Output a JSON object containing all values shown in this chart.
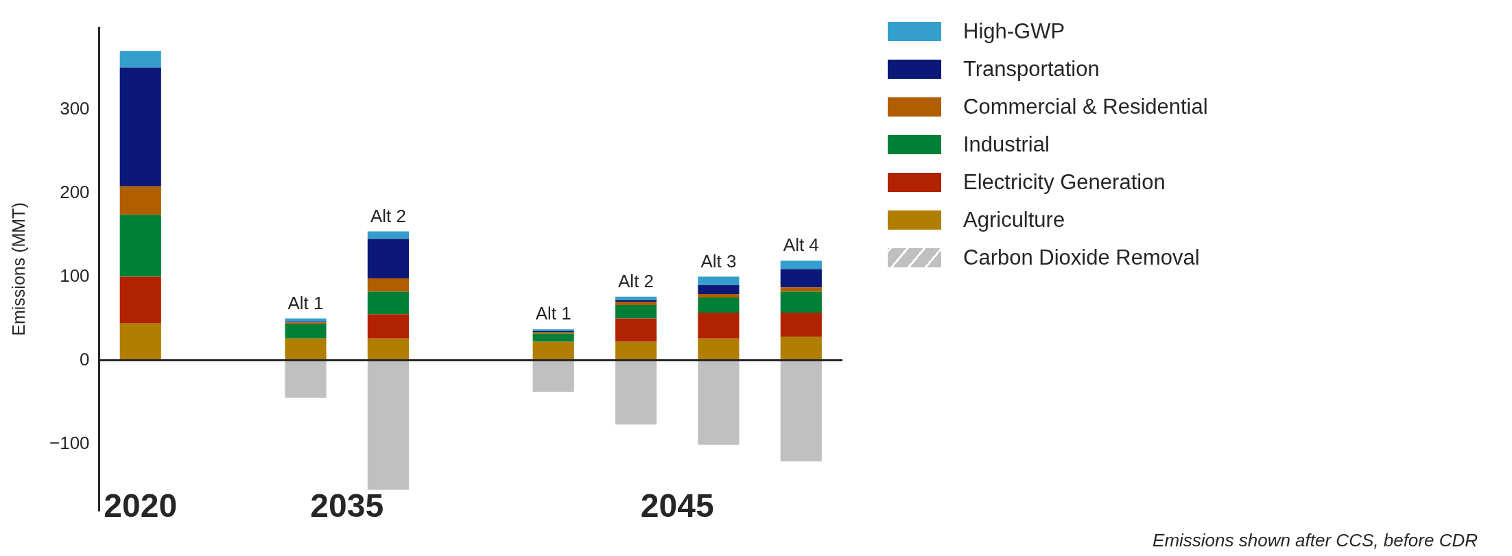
{
  "chart_data": {
    "type": "bar",
    "stacked": true,
    "ylabel": "Emissions (MMT)",
    "categories": [
      null,
      null,
      "Alt 1",
      "Alt 2",
      null,
      "Alt 1",
      "Alt 2",
      "Alt 3",
      "Alt 4"
    ],
    "series": [
      {
        "name": "Agriculture",
        "color": "#b07e00",
        "values": [
          44,
          null,
          26,
          26,
          null,
          22,
          22,
          26,
          28
        ]
      },
      {
        "name": "Electricity Generation",
        "color": "#b02200",
        "values": [
          56,
          null,
          0,
          29,
          null,
          0,
          28,
          31,
          29
        ]
      },
      {
        "name": "Industrial",
        "color": "#008037",
        "values": [
          74,
          null,
          17,
          27,
          null,
          10,
          16,
          18,
          25
        ]
      },
      {
        "name": "Commercial & Residential",
        "color": "#b05e00",
        "values": [
          34,
          null,
          2,
          16,
          null,
          2,
          4,
          4,
          5
        ]
      },
      {
        "name": "Transportation",
        "color": "#0b1878",
        "values": [
          142,
          null,
          1,
          47,
          null,
          1,
          2,
          11,
          22
        ]
      },
      {
        "name": "High-GWP",
        "color": "#349fcd",
        "values": [
          20,
          null,
          4,
          9,
          null,
          2,
          4,
          10,
          10
        ]
      },
      {
        "name": "Carbon Dioxide Removal",
        "color": "#c0c0c0",
        "values": [
          null,
          null,
          -45,
          -155,
          null,
          -38,
          -77,
          -101,
          -121
        ]
      }
    ],
    "ylim": [
      -180,
      398
    ],
    "yticks": [
      -100,
      0,
      100,
      200,
      300
    ],
    "grid": false,
    "legend": "right",
    "ref_lines": [
      {
        "axis": "y",
        "value": 0,
        "color": "#262626"
      }
    ],
    "annotations": [
      "2020",
      "2035",
      "2045",
      "Emissions shown after CCS, before CDR"
    ]
  }
}
